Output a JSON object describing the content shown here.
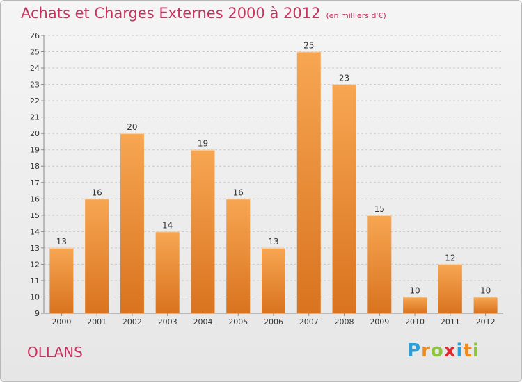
{
  "title": "Achats et Charges Externes 2000 à 2012",
  "subtitle": "(en milliers d'€)",
  "place": "OLLANS",
  "logo": {
    "letters": [
      "P",
      "r",
      "o",
      "x",
      "i",
      "t",
      "i"
    ],
    "colors": [
      "#2aa0d8",
      "#f08a1c",
      "#8cc63f",
      "#e0262e",
      "#2aa0d8",
      "#f08a1c",
      "#8cc63f"
    ]
  },
  "colors": {
    "title": "#c8325e",
    "bar_light": "#f7a652",
    "bar_dark": "#d9731f",
    "grid": "#c8c8c8"
  },
  "chart_data": {
    "type": "bar",
    "categories": [
      "2000",
      "2001",
      "2002",
      "2003",
      "2004",
      "2005",
      "2006",
      "2007",
      "2008",
      "2009",
      "2010",
      "2011",
      "2012"
    ],
    "values": [
      13,
      16,
      20,
      14,
      19,
      16,
      13,
      25,
      23,
      15,
      10,
      12,
      10
    ],
    "ylim": [
      9,
      26
    ],
    "yticks": [
      9,
      10,
      11,
      12,
      13,
      14,
      15,
      16,
      17,
      18,
      19,
      20,
      21,
      22,
      23,
      24,
      25,
      26
    ],
    "grid": "dashed horizontal",
    "data_labels": true
  }
}
